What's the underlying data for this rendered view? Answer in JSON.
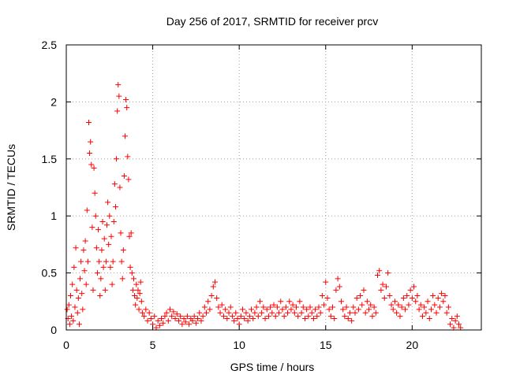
{
  "chart_data": {
    "type": "scatter",
    "title": "Day 256 of 2017, SRMTID for receiver prcv",
    "xlabel": "GPS time / hours",
    "ylabel": "SRMTID / TECUs",
    "xlim": [
      0,
      24
    ],
    "ylim": [
      0,
      2.5
    ],
    "xticks": [
      0,
      5,
      10,
      15,
      20
    ],
    "xtick_labels": [
      "0",
      "5",
      "10",
      "15",
      "20"
    ],
    "yticks": [
      0,
      0.5,
      1,
      1.5,
      2,
      2.5
    ],
    "ytick_labels": [
      "0",
      "0.5",
      "1",
      "1.5",
      "2",
      "2.5"
    ],
    "grid": true,
    "marker": "+",
    "color": "#ff0000",
    "series": [
      {
        "name": "SRMTID",
        "points": [
          [
            0.05,
            0.18
          ],
          [
            0.1,
            0.1
          ],
          [
            0.15,
            0.22
          ],
          [
            0.2,
            0.05
          ],
          [
            0.25,
            0.3
          ],
          [
            0.3,
            0.12
          ],
          [
            0.35,
            0.4
          ],
          [
            0.4,
            0.08
          ],
          [
            0.45,
            0.55
          ],
          [
            0.5,
            0.2
          ],
          [
            0.55,
            0.72
          ],
          [
            0.6,
            0.35
          ],
          [
            0.65,
            0.15
          ],
          [
            0.7,
            0.28
          ],
          [
            0.75,
            0.05
          ],
          [
            0.8,
            0.45
          ],
          [
            0.85,
            0.6
          ],
          [
            0.9,
            0.32
          ],
          [
            0.95,
            0.18
          ],
          [
            1.0,
            0.7
          ],
          [
            1.05,
            0.52
          ],
          [
            1.1,
            0.78
          ],
          [
            1.15,
            0.4
          ],
          [
            1.2,
            1.05
          ],
          [
            1.25,
            0.6
          ],
          [
            1.3,
            1.82
          ],
          [
            1.35,
            1.55
          ],
          [
            1.4,
            1.65
          ],
          [
            1.45,
            1.45
          ],
          [
            1.5,
            0.9
          ],
          [
            1.55,
            0.35
          ],
          [
            1.6,
            1.42
          ],
          [
            1.65,
            1.2
          ],
          [
            1.7,
            1.0
          ],
          [
            1.75,
            0.72
          ],
          [
            1.8,
            0.5
          ],
          [
            1.85,
            0.88
          ],
          [
            1.9,
            0.6
          ],
          [
            1.95,
            0.3
          ],
          [
            2.0,
            0.45
          ],
          [
            2.05,
            0.7
          ],
          [
            2.1,
            0.95
          ],
          [
            2.15,
            0.55
          ],
          [
            2.2,
            0.8
          ],
          [
            2.25,
            0.35
          ],
          [
            2.3,
            0.6
          ],
          [
            2.35,
            0.92
          ],
          [
            2.4,
            1.12
          ],
          [
            2.45,
            0.75
          ],
          [
            2.5,
            1.0
          ],
          [
            2.55,
            0.55
          ],
          [
            2.6,
            0.82
          ],
          [
            2.65,
            0.4
          ],
          [
            2.7,
            0.6
          ],
          [
            2.75,
            0.95
          ],
          [
            2.8,
            1.28
          ],
          [
            2.85,
            1.08
          ],
          [
            2.9,
            1.5
          ],
          [
            2.95,
            1.92
          ],
          [
            3.0,
            2.15
          ],
          [
            3.05,
            2.05
          ],
          [
            3.1,
            1.25
          ],
          [
            3.15,
            0.85
          ],
          [
            3.2,
            0.6
          ],
          [
            3.25,
            0.45
          ],
          [
            3.3,
            0.7
          ],
          [
            3.35,
            1.35
          ],
          [
            3.4,
            1.7
          ],
          [
            3.45,
            2.02
          ],
          [
            3.5,
            1.95
          ],
          [
            3.55,
            1.52
          ],
          [
            3.6,
            1.32
          ],
          [
            3.65,
            0.82
          ],
          [
            3.7,
            0.55
          ],
          [
            3.75,
            0.85
          ],
          [
            3.8,
            0.5
          ],
          [
            3.85,
            0.35
          ],
          [
            3.9,
            0.45
          ],
          [
            3.95,
            0.3
          ],
          [
            4.0,
            0.22
          ],
          [
            4.05,
            0.4
          ],
          [
            4.1,
            0.28
          ],
          [
            4.15,
            0.35
          ],
          [
            4.2,
            0.18
          ],
          [
            4.25,
            0.32
          ],
          [
            4.3,
            0.42
          ],
          [
            4.35,
            0.25
          ],
          [
            4.4,
            0.15
          ],
          [
            4.5,
            0.12
          ],
          [
            4.6,
            0.18
          ],
          [
            4.7,
            0.08
          ],
          [
            4.8,
            0.15
          ],
          [
            4.9,
            0.1
          ],
          [
            5.0,
            0.05
          ],
          [
            5.1,
            0.12
          ],
          [
            5.2,
            0.02
          ],
          [
            5.3,
            0.08
          ],
          [
            5.4,
            0.04
          ],
          [
            5.5,
            0.1
          ],
          [
            5.6,
            0.06
          ],
          [
            5.7,
            0.12
          ],
          [
            5.8,
            0.15
          ],
          [
            5.9,
            0.08
          ],
          [
            6.0,
            0.18
          ],
          [
            6.1,
            0.12
          ],
          [
            6.2,
            0.16
          ],
          [
            6.3,
            0.1
          ],
          [
            6.4,
            0.14
          ],
          [
            6.5,
            0.08
          ],
          [
            6.6,
            0.12
          ],
          [
            6.7,
            0.05
          ],
          [
            6.8,
            0.1
          ],
          [
            6.9,
            0.07
          ],
          [
            7.0,
            0.12
          ],
          [
            7.1,
            0.05
          ],
          [
            7.2,
            0.1
          ],
          [
            7.3,
            0.08
          ],
          [
            7.4,
            0.12
          ],
          [
            7.5,
            0.06
          ],
          [
            7.6,
            0.1
          ],
          [
            7.7,
            0.15
          ],
          [
            7.8,
            0.08
          ],
          [
            7.9,
            0.12
          ],
          [
            8.0,
            0.2
          ],
          [
            8.1,
            0.15
          ],
          [
            8.2,
            0.25
          ],
          [
            8.3,
            0.18
          ],
          [
            8.4,
            0.3
          ],
          [
            8.5,
            0.38
          ],
          [
            8.6,
            0.42
          ],
          [
            8.7,
            0.28
          ],
          [
            8.8,
            0.2
          ],
          [
            8.9,
            0.15
          ],
          [
            9.0,
            0.22
          ],
          [
            9.1,
            0.12
          ],
          [
            9.2,
            0.18
          ],
          [
            9.3,
            0.1
          ],
          [
            9.4,
            0.15
          ],
          [
            9.5,
            0.2
          ],
          [
            9.6,
            0.12
          ],
          [
            9.7,
            0.08
          ],
          [
            9.8,
            0.15
          ],
          [
            9.9,
            0.1
          ],
          [
            10.0,
            0.05
          ],
          [
            10.1,
            0.12
          ],
          [
            10.2,
            0.18
          ],
          [
            10.3,
            0.1
          ],
          [
            10.4,
            0.15
          ],
          [
            10.5,
            0.08
          ],
          [
            10.6,
            0.12
          ],
          [
            10.7,
            0.18
          ],
          [
            10.8,
            0.1
          ],
          [
            10.9,
            0.15
          ],
          [
            11.0,
            0.2
          ],
          [
            11.1,
            0.12
          ],
          [
            11.2,
            0.25
          ],
          [
            11.3,
            0.15
          ],
          [
            11.4,
            0.2
          ],
          [
            11.5,
            0.1
          ],
          [
            11.6,
            0.18
          ],
          [
            11.7,
            0.12
          ],
          [
            11.8,
            0.2
          ],
          [
            11.9,
            0.15
          ],
          [
            12.0,
            0.22
          ],
          [
            12.1,
            0.12
          ],
          [
            12.2,
            0.2
          ],
          [
            12.3,
            0.15
          ],
          [
            12.4,
            0.25
          ],
          [
            12.5,
            0.18
          ],
          [
            12.6,
            0.12
          ],
          [
            12.7,
            0.2
          ],
          [
            12.8,
            0.15
          ],
          [
            12.9,
            0.25
          ],
          [
            13.0,
            0.18
          ],
          [
            13.1,
            0.22
          ],
          [
            13.2,
            0.15
          ],
          [
            13.3,
            0.2
          ],
          [
            13.4,
            0.12
          ],
          [
            13.5,
            0.25
          ],
          [
            13.6,
            0.15
          ],
          [
            13.7,
            0.2
          ],
          [
            13.8,
            0.1
          ],
          [
            13.9,
            0.18
          ],
          [
            14.0,
            0.12
          ],
          [
            14.1,
            0.2
          ],
          [
            14.2,
            0.15
          ],
          [
            14.3,
            0.1
          ],
          [
            14.4,
            0.18
          ],
          [
            14.5,
            0.12
          ],
          [
            14.6,
            0.2
          ],
          [
            14.7,
            0.15
          ],
          [
            14.8,
            0.3
          ],
          [
            14.9,
            0.22
          ],
          [
            15.0,
            0.42
          ],
          [
            15.1,
            0.28
          ],
          [
            15.2,
            0.18
          ],
          [
            15.3,
            0.12
          ],
          [
            15.4,
            0.2
          ],
          [
            15.5,
            0.1
          ],
          [
            15.6,
            0.35
          ],
          [
            15.7,
            0.45
          ],
          [
            15.8,
            0.38
          ],
          [
            15.9,
            0.25
          ],
          [
            16.0,
            0.18
          ],
          [
            16.1,
            0.12
          ],
          [
            16.2,
            0.2
          ],
          [
            16.3,
            0.1
          ],
          [
            16.4,
            0.15
          ],
          [
            16.5,
            0.08
          ],
          [
            16.6,
            0.2
          ],
          [
            16.7,
            0.15
          ],
          [
            16.8,
            0.28
          ],
          [
            16.9,
            0.18
          ],
          [
            17.0,
            0.3
          ],
          [
            17.1,
            0.22
          ],
          [
            17.2,
            0.35
          ],
          [
            17.3,
            0.15
          ],
          [
            17.4,
            0.25
          ],
          [
            17.5,
            0.18
          ],
          [
            17.6,
            0.22
          ],
          [
            17.7,
            0.12
          ],
          [
            17.8,
            0.2
          ],
          [
            17.9,
            0.15
          ],
          [
            18.0,
            0.48
          ],
          [
            18.1,
            0.52
          ],
          [
            18.2,
            0.35
          ],
          [
            18.3,
            0.4
          ],
          [
            18.4,
            0.28
          ],
          [
            18.5,
            0.38
          ],
          [
            18.6,
            0.5
          ],
          [
            18.7,
            0.3
          ],
          [
            18.8,
            0.22
          ],
          [
            18.9,
            0.18
          ],
          [
            19.0,
            0.25
          ],
          [
            19.1,
            0.15
          ],
          [
            19.2,
            0.22
          ],
          [
            19.3,
            0.12
          ],
          [
            19.4,
            0.2
          ],
          [
            19.5,
            0.28
          ],
          [
            19.6,
            0.18
          ],
          [
            19.7,
            0.3
          ],
          [
            19.8,
            0.22
          ],
          [
            19.9,
            0.35
          ],
          [
            20.0,
            0.28
          ],
          [
            20.1,
            0.38
          ],
          [
            20.2,
            0.25
          ],
          [
            20.3,
            0.3
          ],
          [
            20.4,
            0.18
          ],
          [
            20.5,
            0.22
          ],
          [
            20.6,
            0.12
          ],
          [
            20.7,
            0.2
          ],
          [
            20.8,
            0.15
          ],
          [
            20.9,
            0.25
          ],
          [
            21.0,
            0.1
          ],
          [
            21.1,
            0.18
          ],
          [
            21.2,
            0.3
          ],
          [
            21.3,
            0.22
          ],
          [
            21.4,
            0.15
          ],
          [
            21.5,
            0.28
          ],
          [
            21.6,
            0.2
          ],
          [
            21.7,
            0.32
          ],
          [
            21.8,
            0.25
          ],
          [
            21.9,
            0.3
          ],
          [
            22.0,
            0.15
          ],
          [
            22.1,
            0.2
          ],
          [
            22.2,
            0.05
          ],
          [
            22.3,
            0.1
          ],
          [
            22.4,
            0.02
          ],
          [
            22.5,
            0.08
          ],
          [
            22.6,
            0.12
          ],
          [
            22.7,
            0.05
          ],
          [
            22.8,
            0.02
          ]
        ]
      }
    ]
  }
}
